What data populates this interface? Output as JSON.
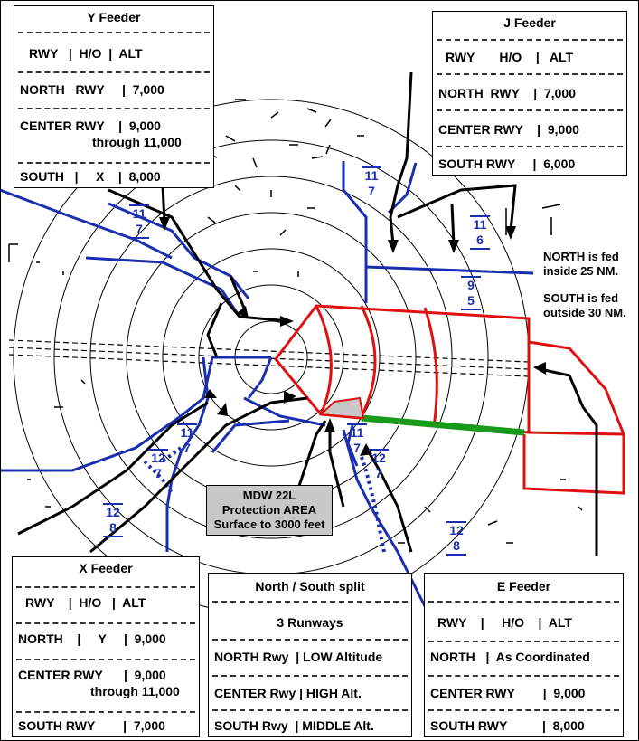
{
  "y_feeder": {
    "title": "Y Feeder",
    "header": "RWY   |  H/O  |  ALT",
    "rows": [
      "NORTH   RWY     |  7,000",
      "CENTER RWY    |  9,000",
      "through 11,000",
      "SOUTH   |     X    |  8,000"
    ]
  },
  "j_feeder": {
    "title": "J Feeder",
    "header": "RWY       H/O    |   ALT",
    "rows": [
      "NORTH  RWY    |  7,000",
      "CENTER RWY    |  9,000",
      "SOUTH RWY     |  6,000"
    ]
  },
  "x_feeder": {
    "title": "X Feeder",
    "header": "RWY    |  H/O   |  ALT",
    "rows": [
      "NORTH    |     Y     |  9,000",
      "CENTER RWY      |  9,000",
      "through 11,000",
      "SOUTH RWY        |  7,000"
    ]
  },
  "split": {
    "title": "North / South split",
    "subtitle": "3 Runways",
    "rows": [
      "NORTH Rwy  | LOW Altitude",
      "CENTER Rwy | HIGH Alt.",
      "SOUTH Rwy  | MIDDLE Alt."
    ]
  },
  "e_feeder": {
    "title": "E Feeder",
    "header": "RWY    |     H/O    |  ALT",
    "rows": [
      "NORTH   |  As Coordinated",
      "CENTER RWY        |  9,000",
      "SOUTH RWY          |  8,000"
    ]
  },
  "notes": {
    "north_fed": "NORTH is fed\ninside 25 NM.",
    "south_fed": "SOUTH is fed\noutside 30 NM."
  },
  "protection": {
    "line1": "MDW 22L",
    "line2": "Protection AREA",
    "line3": "Surface to 3000 feet"
  },
  "fix_labels": [
    {
      "top": "11",
      "bot": "7"
    },
    {
      "top": "11",
      "bot": "7"
    },
    {
      "top": "11",
      "bot": "6"
    },
    {
      "top": "9",
      "bot": "5"
    },
    {
      "top": "11",
      "bot": "7"
    },
    {
      "top": "12",
      "bot": "7"
    },
    {
      "top": "12",
      "bot": "8"
    },
    {
      "top": "11",
      "bot": "7"
    },
    {
      "top": "12",
      "bot": "7"
    },
    {
      "top": "12",
      "bot": "8"
    }
  ],
  "colors": {
    "route_blue": "#1a2fb0",
    "arrival_black": "#000000",
    "area_red": "#e01010",
    "split_green": "#1a9a1a",
    "protect_gray": "#c8c8c8"
  }
}
